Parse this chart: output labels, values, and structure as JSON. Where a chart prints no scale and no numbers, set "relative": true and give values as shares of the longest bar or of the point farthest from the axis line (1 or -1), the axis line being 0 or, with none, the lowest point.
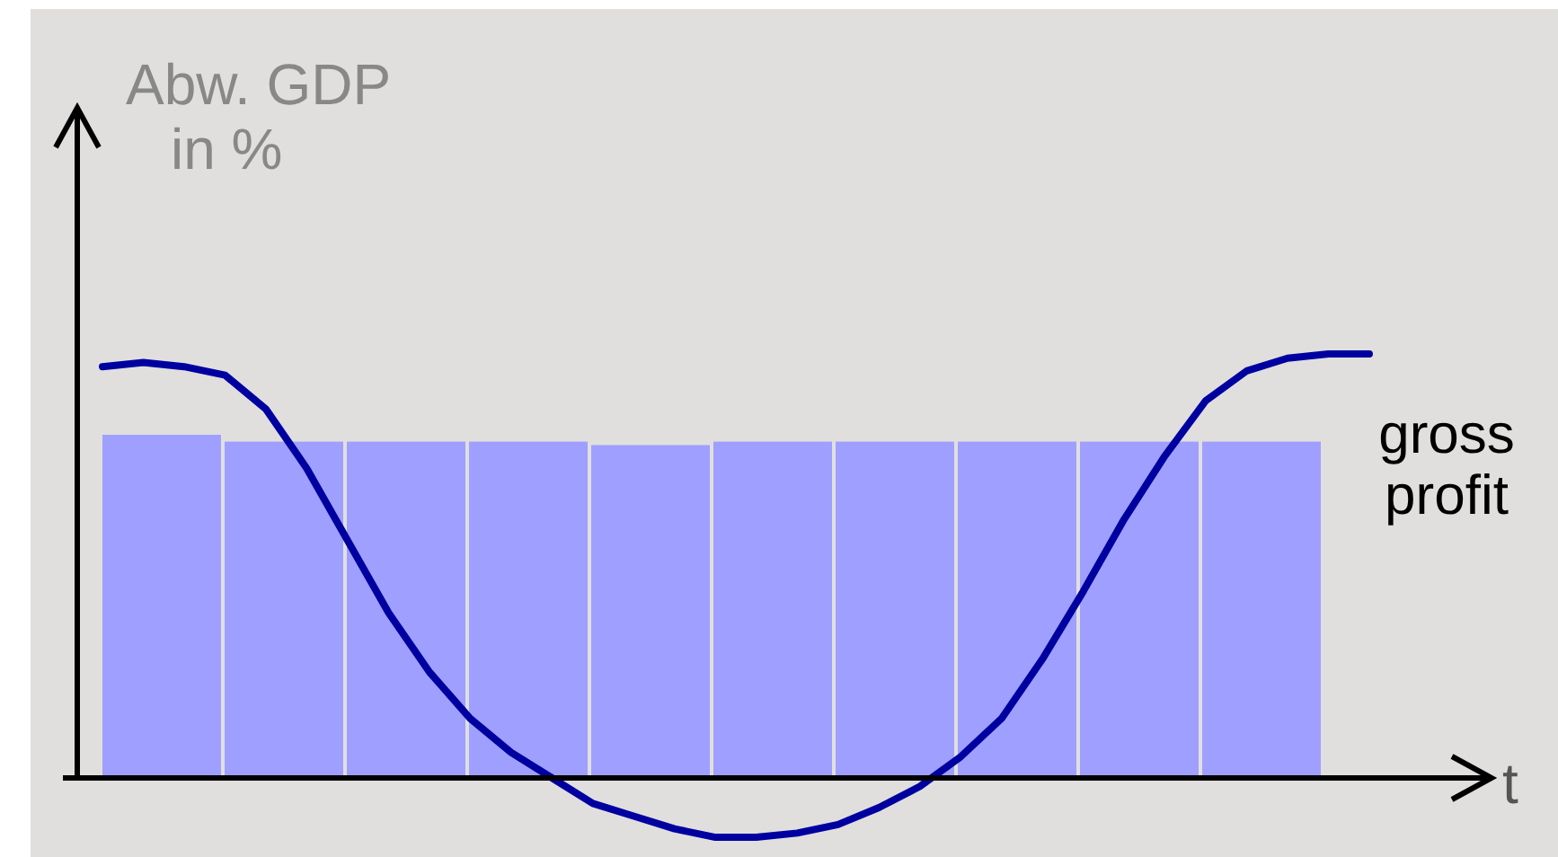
{
  "chart_data": [
    {
      "type": "bar",
      "relative": true,
      "xlabel": "t",
      "ylabel": "Abw. GDP\nin %",
      "categories": [
        null,
        null,
        null,
        null,
        null,
        null,
        null,
        null,
        null,
        null
      ],
      "series": [
        {
          "name": "gross profit",
          "color": "#9f9fff",
          "values": [
            1,
            0.98,
            0.98,
            0.98,
            0.97,
            0.98,
            0.98,
            0.98,
            0.98,
            0.98
          ]
        }
      ]
    },
    {
      "type": "line",
      "relative": true,
      "categories": [
        null,
        null,
        null,
        null,
        null,
        null,
        null,
        null,
        null,
        null,
        null,
        null,
        null,
        null,
        null,
        null,
        null,
        null,
        null,
        null,
        null,
        null,
        null,
        null,
        null,
        null,
        null,
        null,
        null,
        null,
        null,
        null
      ],
      "series": [
        {
          "color": "#0000a0",
          "values": [
            0.97,
            0.98,
            0.97,
            0.95,
            0.87,
            0.73,
            0.56,
            0.39,
            0.25,
            0.14,
            0.06,
            0,
            -0.06,
            -0.09,
            -0.12,
            -0.14,
            -0.14,
            -0.13,
            -0.11,
            -0.07,
            -0.02,
            0.05,
            0.14,
            0.28,
            0.44,
            0.61,
            0.76,
            0.89,
            0.96,
            0.99,
            1,
            1
          ]
        }
      ]
    }
  ]
}
